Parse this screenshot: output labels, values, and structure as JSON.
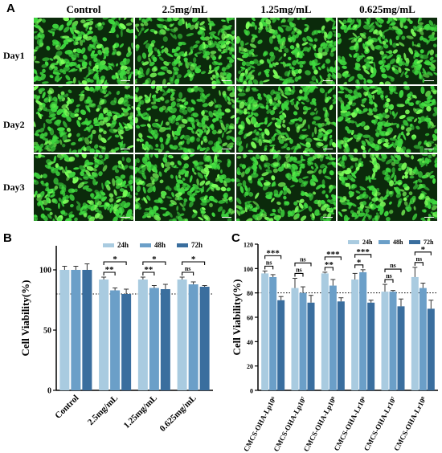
{
  "panelA": {
    "letter": "A",
    "columns": [
      "Control",
      "2.5mg/mL",
      "1.25mg/mL",
      "0.625mg/mL"
    ],
    "rows": [
      "Day1",
      "Day2",
      "Day3"
    ],
    "tile_colors": {
      "base": "#0b2a0b",
      "cell": "#3fd93f",
      "bright": "#7cff5a"
    }
  },
  "panelB": {
    "letter": "B",
    "chart_data": {
      "type": "bar",
      "ylabel": "Cell Viability(%)",
      "ylim": [
        0,
        120
      ],
      "yticks": [
        0,
        50,
        100
      ],
      "reference_line": 80,
      "categories": [
        "Control",
        "2.5mg/mL",
        "1.25mg/mL",
        "0.625mg/mL"
      ],
      "series": [
        {
          "name": "24h",
          "color": "#a9cbe0",
          "values": [
            100,
            92,
            92,
            92
          ],
          "errors": [
            3,
            2,
            2,
            2
          ]
        },
        {
          "name": "48h",
          "color": "#6b9fc8",
          "values": [
            100,
            83,
            85,
            88
          ],
          "errors": [
            3,
            2,
            2,
            2
          ]
        },
        {
          "name": "72h",
          "color": "#3a6e9e",
          "values": [
            100,
            80,
            84,
            86
          ],
          "errors": [
            5,
            4,
            4,
            1
          ]
        }
      ],
      "significance": [
        {
          "category": 1,
          "from": 0,
          "to": 1,
          "label": "**"
        },
        {
          "category": 1,
          "from": 0,
          "to": 2,
          "label": "*"
        },
        {
          "category": 2,
          "from": 0,
          "to": 1,
          "label": "**"
        },
        {
          "category": 2,
          "from": 0,
          "to": 2,
          "label": "*"
        },
        {
          "category": 3,
          "from": 0,
          "to": 1,
          "label": "ns"
        },
        {
          "category": 3,
          "from": 0,
          "to": 2,
          "label": "*"
        }
      ]
    }
  },
  "panelC": {
    "letter": "C",
    "chart_data": {
      "type": "bar",
      "ylabel": "Cell Viability(%)",
      "ylim": [
        0,
        120
      ],
      "yticks": [
        0,
        20,
        40,
        60,
        80,
        100,
        120
      ],
      "reference_line": 80,
      "categories": [
        "CMCS-OHA-Lp10⁶",
        "CMCS-OHA-Lp10⁷",
        "CMCS-OHA-Lp10⁸",
        "CMCS-OHA-Lr10⁶",
        "CMCS-OHA-Lr10⁷",
        "CMCS-OHA-Lr10⁸"
      ],
      "series": [
        {
          "name": "24h",
          "color": "#a9cbe0",
          "values": [
            96,
            84,
            96,
            91,
            81,
            93
          ],
          "errors": [
            2,
            8,
            1,
            5,
            6,
            8
          ]
        },
        {
          "name": "48h",
          "color": "#6b9fc8",
          "values": [
            93,
            80,
            86,
            97,
            81,
            84
          ],
          "errors": [
            2,
            5,
            5,
            2,
            1,
            4
          ]
        },
        {
          "name": "72h",
          "color": "#3a6e9e",
          "values": [
            74,
            72,
            73,
            72,
            69,
            67
          ],
          "errors": [
            3,
            6,
            3,
            2,
            6,
            7
          ]
        }
      ],
      "significance": [
        {
          "category": 0,
          "from": 0,
          "to": 1,
          "label": "ns"
        },
        {
          "category": 0,
          "from": 0,
          "to": 2,
          "label": "***"
        },
        {
          "category": 1,
          "from": 0,
          "to": 1,
          "label": "ns"
        },
        {
          "category": 1,
          "from": 0,
          "to": 2,
          "label": "ns"
        },
        {
          "category": 2,
          "from": 0,
          "to": 1,
          "label": "**"
        },
        {
          "category": 2,
          "from": 0,
          "to": 2,
          "label": "***"
        },
        {
          "category": 3,
          "from": 0,
          "to": 1,
          "label": "*"
        },
        {
          "category": 3,
          "from": 0,
          "to": 2,
          "label": "***"
        },
        {
          "category": 4,
          "from": 0,
          "to": 1,
          "label": "ns"
        },
        {
          "category": 4,
          "from": 0,
          "to": 2,
          "label": "ns"
        },
        {
          "category": 5,
          "from": 0,
          "to": 1,
          "label": "ns"
        },
        {
          "category": 5,
          "from": 0,
          "to": 2,
          "label": "*"
        }
      ]
    }
  }
}
